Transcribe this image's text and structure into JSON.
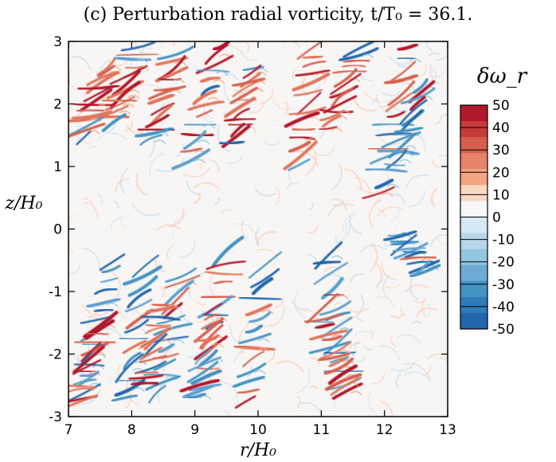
{
  "chart_data": {
    "type": "heatmap",
    "title": "(c) Perturbation radial vorticity, t/T₀ = 36.1.",
    "xlabel": "r/H₀",
    "ylabel": "z/H₀",
    "xlim": [
      7,
      13
    ],
    "ylim": [
      -3,
      3
    ],
    "x_ticks": [
      "7",
      "8",
      "9",
      "10",
      "11",
      "12",
      "13"
    ],
    "y_ticks": [
      "-3",
      "-2",
      "-1",
      "0",
      "1",
      "2",
      "3"
    ],
    "x_tick_values": [
      7,
      8,
      9,
      10,
      11,
      12,
      13
    ],
    "y_tick_values": [
      -3,
      -2,
      -1,
      0,
      1,
      2,
      3
    ],
    "colorbar": {
      "label": "δω_r",
      "range": [
        -50,
        50
      ],
      "ticks": [
        "50",
        "40",
        "30",
        "20",
        "10",
        "0",
        "-10",
        "-20",
        "-30",
        "-40",
        "-50"
      ],
      "tick_values": [
        50,
        40,
        30,
        20,
        10,
        0,
        -10,
        -20,
        -30,
        -40,
        -50
      ],
      "colors": [
        "#b2182b",
        "#c73a3a",
        "#d6604d",
        "#e58268",
        "#f4a582",
        "#fbd8c4",
        "#f7f7f7",
        "#d6e8f2",
        "#b7d5ea",
        "#92c5de",
        "#6eaad3",
        "#4393c3",
        "#2f7bb8",
        "#2166ac"
      ]
    },
    "features": [
      {
        "x0": 7.6,
        "z0": 2.6,
        "x1": 7.2,
        "z1": 1.4,
        "sign": 1
      },
      {
        "x0": 8.1,
        "z0": 2.9,
        "x1": 7.7,
        "z1": 1.6,
        "sign": 1
      },
      {
        "x0": 8.7,
        "z0": 2.8,
        "x1": 8.3,
        "z1": 1.3,
        "sign": 1
      },
      {
        "x0": 9.4,
        "z0": 2.9,
        "x1": 8.9,
        "z1": 1.0,
        "sign": 1
      },
      {
        "x0": 9.9,
        "z0": 2.6,
        "x1": 9.6,
        "z1": 1.3,
        "sign": 1
      },
      {
        "x0": 10.9,
        "z0": 2.9,
        "x1": 10.6,
        "z1": 0.9,
        "sign": 1
      },
      {
        "x0": 11.6,
        "z0": 2.9,
        "x1": 11.1,
        "z1": 1.5,
        "sign": 1
      },
      {
        "x0": 12.4,
        "z0": 2.9,
        "x1": 11.9,
        "z1": 0.4,
        "sign": 1
      },
      {
        "x0": 12.6,
        "z0": 2.3,
        "x1": 12.1,
        "z1": 0.9,
        "sign": -1
      },
      {
        "x0": 7.7,
        "z0": -0.5,
        "x1": 7.2,
        "z1": -2.8,
        "sign": -1
      },
      {
        "x0": 8.2,
        "z0": -0.6,
        "x1": 7.9,
        "z1": -2.9,
        "sign": -1
      },
      {
        "x0": 8.8,
        "z0": -0.7,
        "x1": 8.4,
        "z1": -2.8,
        "sign": -1
      },
      {
        "x0": 9.5,
        "z0": -0.4,
        "x1": 9.1,
        "z1": -2.7,
        "sign": -1
      },
      {
        "x0": 10.1,
        "z0": -0.6,
        "x1": 9.8,
        "z1": -2.9,
        "sign": -1
      },
      {
        "x0": 11.1,
        "z0": -0.4,
        "x1": 11.4,
        "z1": -2.8,
        "sign": -1
      },
      {
        "x0": 12.2,
        "z0": -0.1,
        "x1": 12.7,
        "z1": -0.7,
        "sign": -1
      },
      {
        "x0": 7.5,
        "z0": -1.5,
        "x1": 7.1,
        "z1": -2.9,
        "sign": 1
      },
      {
        "x0": 8.5,
        "z0": -1.2,
        "x1": 8.2,
        "z1": -2.6,
        "sign": 1
      },
      {
        "x0": 9.3,
        "z0": -1.3,
        "x1": 9.0,
        "z1": -2.8,
        "sign": 1
      },
      {
        "x0": 11.0,
        "z0": -1.3,
        "x1": 11.4,
        "z1": -2.6,
        "sign": 1
      }
    ]
  }
}
